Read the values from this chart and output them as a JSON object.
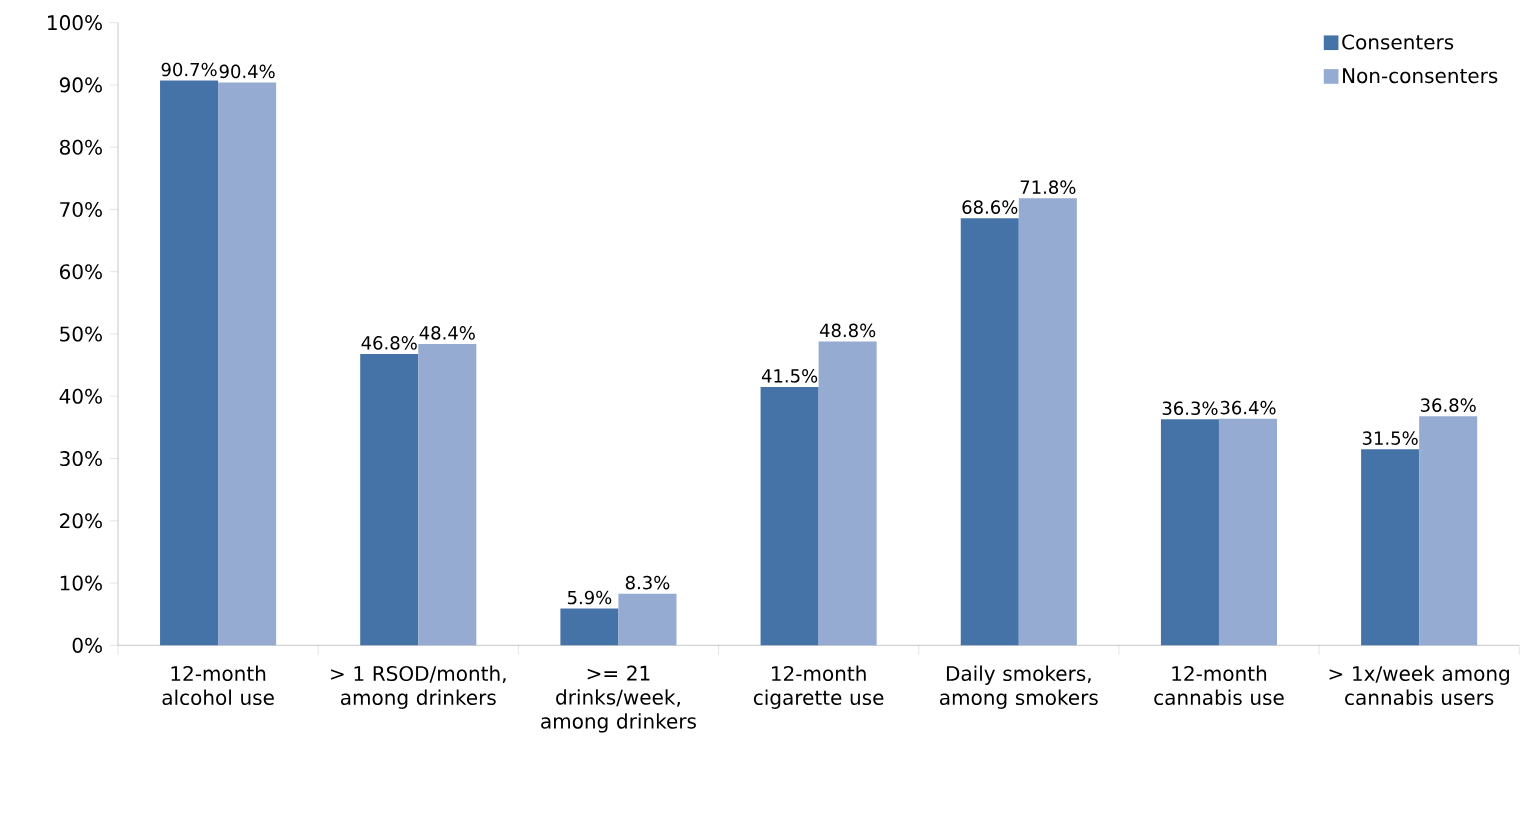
{
  "chart_data": {
    "type": "bar",
    "categories": [
      "12-month alcohol use",
      "> 1 RSOD/month, among drinkers",
      ">= 21 drinks/week, among drinkers",
      "12-month cigarette use",
      "Daily smokers, among smokers",
      "12-month cannabis use",
      "> 1x/week among cannabis users"
    ],
    "series": [
      {
        "name": "Consenters",
        "color": "#4673a7",
        "values": [
          90.7,
          46.8,
          5.9,
          41.5,
          68.6,
          36.3,
          31.5
        ],
        "value_labels": [
          "90.7%",
          "46.8%",
          "5.9%",
          "41.5%",
          "68.6%",
          "36.3%",
          "31.5%"
        ]
      },
      {
        "name": "Non-consenters",
        "color": "#95abd2",
        "values": [
          90.4,
          48.4,
          8.3,
          48.8,
          71.8,
          36.4,
          36.8
        ],
        "value_labels": [
          "90.4%",
          "48.4%",
          "8.3%",
          "48.8%",
          "71.8%",
          "36.4%",
          "36.8%"
        ]
      }
    ],
    "ylim": [
      0,
      100
    ],
    "yticks": [
      {
        "value": 0,
        "label": "0%"
      },
      {
        "value": 10,
        "label": "10%"
      },
      {
        "value": 20,
        "label": "20%"
      },
      {
        "value": 30,
        "label": "30%"
      },
      {
        "value": 40,
        "label": "40%"
      },
      {
        "value": 50,
        "label": "50%"
      },
      {
        "value": 60,
        "label": "60%"
      },
      {
        "value": 70,
        "label": "70%"
      },
      {
        "value": 80,
        "label": "80%"
      },
      {
        "value": 90,
        "label": "90%"
      },
      {
        "value": 100,
        "label": "100%"
      }
    ],
    "legend": "top right"
  }
}
